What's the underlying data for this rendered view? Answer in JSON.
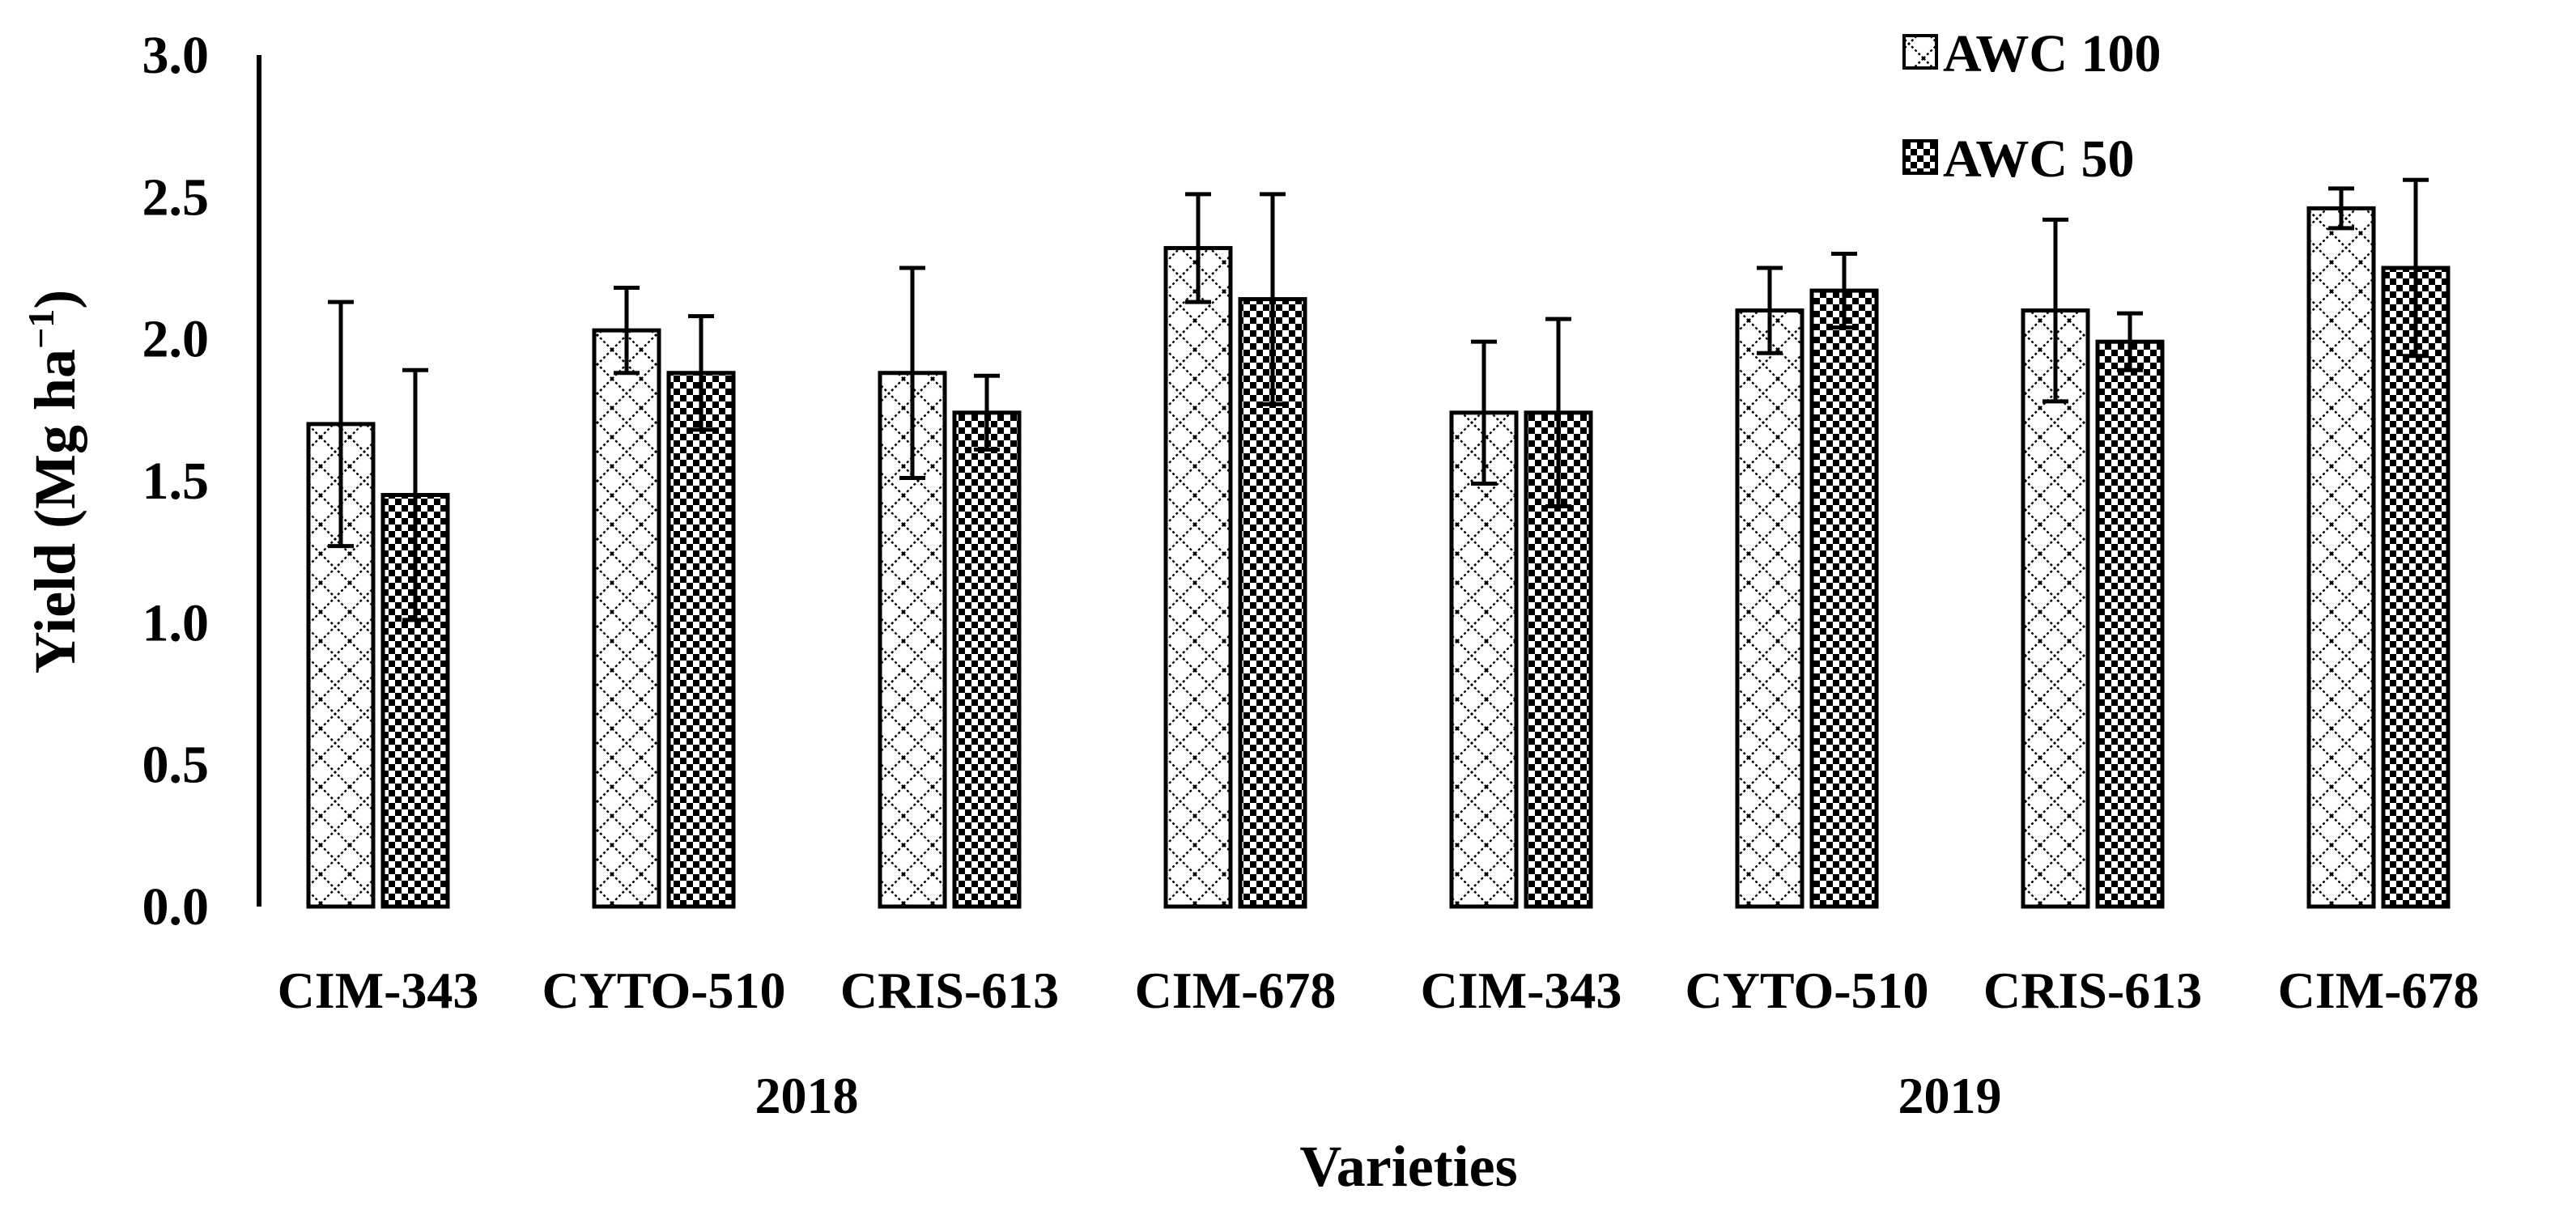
{
  "chart_data": {
    "type": "bar",
    "title": "",
    "xlabel": "Varieties",
    "ylabel": "Yield (Mg ha",
    "ylabel_sup": "−1",
    "ylabel_close": ")",
    "ylim": [
      0,
      3.0
    ],
    "yticks": [
      "0.0",
      "0.5",
      "1.0",
      "1.5",
      "2.0",
      "2.5",
      "3.0"
    ],
    "categories": [
      "CIM-343",
      "CYTO-510",
      "CRIS-613",
      "CIM-678",
      "CIM-343",
      "CYTO-510",
      "CRIS-613",
      "CIM-678"
    ],
    "groups": [
      {
        "label": "2018",
        "start": 0,
        "end": 3
      },
      {
        "label": "2019",
        "start": 4,
        "end": 7
      }
    ],
    "series": [
      {
        "name": "AWC 100",
        "pattern": "crosshatch",
        "values": [
          1.7,
          2.03,
          1.88,
          2.32,
          1.74,
          2.1,
          2.1,
          2.46
        ],
        "errors": [
          0.43,
          0.15,
          0.37,
          0.19,
          0.25,
          0.15,
          0.32,
          0.07
        ]
      },
      {
        "name": "AWC 50",
        "pattern": "checker",
        "values": [
          1.45,
          1.88,
          1.74,
          2.14,
          1.74,
          2.17,
          1.99,
          2.25
        ],
        "errors": [
          0.44,
          0.2,
          0.13,
          0.37,
          0.33,
          0.13,
          0.1,
          0.31
        ]
      }
    ],
    "legend_position": "top-right",
    "grid": false
  }
}
